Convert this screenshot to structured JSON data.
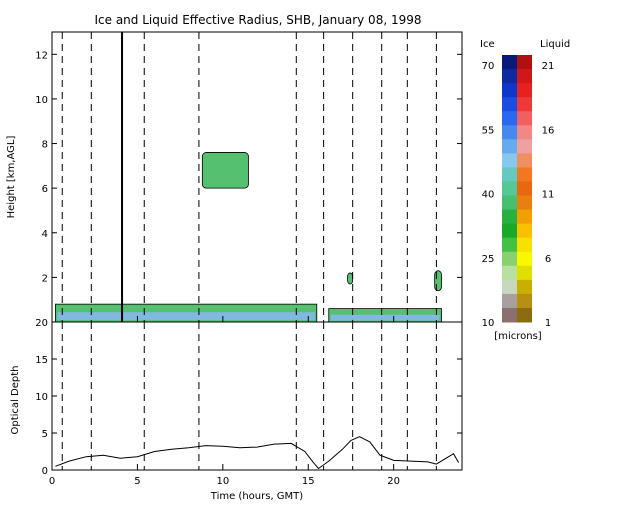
{
  "figure": {
    "title": "Ice and Liquid Effective Radius, SHB, January 08, 1998"
  },
  "colorbar": {
    "ice_header": "Ice",
    "liquid_header": "Liquid",
    "units": "[microns]",
    "ice_ticks": [
      "70",
      "55",
      "40",
      "25",
      "10"
    ],
    "liquid_ticks": [
      "21",
      "16",
      "11",
      "6",
      "1"
    ],
    "ice_colors": [
      "#0a1a7a",
      "#0d2aa0",
      "#1038c8",
      "#1a4ee0",
      "#2a68f0",
      "#4488f0",
      "#66aaf0",
      "#88c8f0",
      "#66c8c0",
      "#55c898",
      "#44c070",
      "#2ab040",
      "#1aa828",
      "#44c044",
      "#88d070",
      "#b8e0a0",
      "#c8d8c0",
      "#a8a0a0",
      "#8c7070"
    ],
    "liquid_colors": [
      "#b01010",
      "#d01818",
      "#e82020",
      "#f03838",
      "#f06060",
      "#f08888",
      "#f0a0a0",
      "#f09060",
      "#f07820",
      "#e86810",
      "#e88010",
      "#f0a000",
      "#f8c000",
      "#f8e000",
      "#f8f800",
      "#e0e000",
      "#c8b000",
      "#b89010",
      "#8c6c10"
    ]
  },
  "chart_data": [
    {
      "type": "heatmap",
      "title": "Ice and Liquid Effective Radius, SHB, January 08, 1998",
      "xlabel": "",
      "ylabel": "Height [km,AGL]",
      "xlim": [
        0,
        24
      ],
      "ylim": [
        0,
        13
      ],
      "y_ticks": [
        2,
        4,
        6,
        8,
        10,
        12
      ],
      "dashed_time_markers_hours": [
        0.6,
        2.3,
        5.4,
        8.6,
        14.3,
        15.9,
        17.6,
        19.3,
        20.8,
        22.5
      ],
      "solid_time_markers_hours": [
        4.1
      ],
      "cloud_layers": [
        {
          "name": "boundary-layer liquid cloud",
          "x": [
            0.2,
            15.5
          ],
          "y_top_km": 0.8
        },
        {
          "name": "mid-level ice cloud",
          "x": [
            8.8,
            11.5
          ],
          "y_km": [
            6.0,
            7.6
          ]
        },
        {
          "name": "late boundary-layer cloud",
          "x": [
            16.2,
            22.8
          ],
          "y_top_km": 0.6
        },
        {
          "name": "isolated cell",
          "x": [
            17.3,
            17.6
          ],
          "y_km": [
            1.7,
            2.2
          ]
        },
        {
          "name": "isolated cell",
          "x": [
            22.4,
            22.8
          ],
          "y_km": [
            1.4,
            2.3
          ]
        }
      ]
    },
    {
      "type": "line",
      "xlabel": "Time (hours, GMT)",
      "ylabel": "Optical Depth",
      "xlim": [
        0,
        24
      ],
      "ylim": [
        0,
        20
      ],
      "x_ticks": [
        0,
        5,
        10,
        15,
        20
      ],
      "y_ticks": [
        0,
        5,
        10,
        15,
        20
      ],
      "series": [
        {
          "x": [
            0.2,
            1,
            2,
            3,
            4,
            5,
            6,
            7,
            8,
            9,
            10,
            11,
            12,
            13,
            14,
            14.8,
            15.3,
            15.6,
            16.2,
            17,
            17.5,
            18,
            18.6,
            19.2,
            20,
            21,
            22,
            22.5,
            23,
            23.5,
            23.8
          ],
          "y": [
            0.5,
            1.2,
            1.8,
            2.0,
            1.6,
            1.8,
            2.5,
            2.8,
            3.0,
            3.3,
            3.2,
            3.0,
            3.1,
            3.5,
            3.6,
            2.5,
            1.0,
            0.2,
            1.2,
            2.8,
            4.0,
            4.5,
            3.8,
            2.0,
            1.3,
            1.2,
            1.1,
            0.8,
            1.5,
            2.2,
            1.0
          ]
        }
      ]
    }
  ]
}
